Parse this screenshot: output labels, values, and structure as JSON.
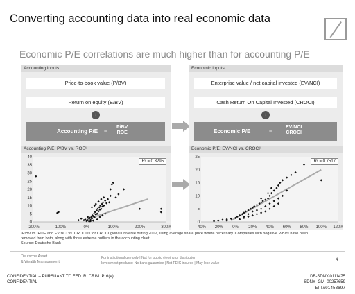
{
  "header": {
    "title": "Converting accounting data into real economic data",
    "subtitle": "Economic P/E correlations are much higher than for accounting P/E"
  },
  "left_panel": {
    "header": "Accounting inputs",
    "box1": "Price-to-book value (P/BV)",
    "box2": "Return on equity (E/BV)",
    "pe_label": "Accounting P/E",
    "equals": "=",
    "numerator": "P/BV",
    "denominator": "ROE"
  },
  "right_panel": {
    "header": "Economic inputs",
    "box1": "Enterprise value / net capital invested (EV/NCI)",
    "box2": "Cash Return On Capital Invested (CROCI)",
    "pe_label": "Economic P/E",
    "equals": "=",
    "numerator": "EV/NCI",
    "denominator": "CROCI"
  },
  "icons": {
    "down_arrow": "↓"
  },
  "chart_data": [
    {
      "type": "scatter",
      "title": "Accounting P/E: P/BV vs. ROE¹",
      "r2": "R² = 0.3295",
      "xlim": [
        -2.0,
        3.0
      ],
      "ylim": [
        0,
        40
      ],
      "xticks": [
        "-200%",
        "-100%",
        "0%",
        "100%",
        "200%",
        "300%"
      ],
      "yticks": [
        "0",
        "5",
        "10",
        "15",
        "20",
        "25",
        "30",
        "35",
        "40"
      ],
      "trendline": [
        [
          0.0,
          1.5
        ],
        [
          2.3,
          14
        ]
      ],
      "points": [
        [
          -1.05,
          6
        ],
        [
          -1.1,
          5.5
        ],
        [
          -0.1,
          1
        ],
        [
          -0.05,
          1.5
        ],
        [
          0.0,
          0.5
        ],
        [
          0.05,
          1
        ],
        [
          0.1,
          2
        ],
        [
          0.12,
          2.5
        ],
        [
          0.15,
          1.2
        ],
        [
          0.18,
          3
        ],
        [
          0.2,
          2
        ],
        [
          0.22,
          4
        ],
        [
          0.25,
          3.5
        ],
        [
          0.28,
          5
        ],
        [
          0.3,
          2.8
        ],
        [
          0.32,
          6
        ],
        [
          0.35,
          4.5
        ],
        [
          0.38,
          7
        ],
        [
          0.4,
          5
        ],
        [
          0.42,
          8
        ],
        [
          0.45,
          6.5
        ],
        [
          0.48,
          9
        ],
        [
          0.5,
          7.5
        ],
        [
          0.52,
          10
        ],
        [
          0.55,
          8
        ],
        [
          0.58,
          11
        ],
        [
          0.6,
          9.5
        ],
        [
          0.62,
          12
        ],
        [
          0.65,
          10
        ],
        [
          0.7,
          13
        ],
        [
          0.75,
          11.5
        ],
        [
          0.8,
          14
        ],
        [
          0.85,
          12
        ],
        [
          0.9,
          20
        ],
        [
          0.95,
          23
        ],
        [
          1.0,
          24
        ],
        [
          0.3,
          10
        ],
        [
          0.2,
          9
        ],
        [
          0.35,
          11
        ],
        [
          0.45,
          12.5
        ],
        [
          0.5,
          3
        ],
        [
          0.6,
          4
        ],
        [
          0.7,
          5
        ],
        [
          0.4,
          1.5
        ],
        [
          0.25,
          0.8
        ],
        [
          0.15,
          0.5
        ],
        [
          0.1,
          0.2
        ],
        [
          0.05,
          3
        ],
        [
          -0.2,
          2
        ],
        [
          -0.3,
          1
        ],
        [
          -1.9,
          28
        ],
        [
          1.4,
          20
        ],
        [
          2.0,
          8
        ],
        [
          2.8,
          8
        ],
        [
          2.8,
          6
        ],
        [
          1.1,
          15
        ],
        [
          1.2,
          17
        ],
        [
          0.9,
          16
        ],
        [
          0.55,
          14
        ],
        [
          0.65,
          15
        ]
      ]
    },
    {
      "type": "scatter",
      "title": "Economic P/E: EV/NCI vs. CROCI¹",
      "r2": "R² = 0.7517",
      "xlim": [
        -0.4,
        1.2
      ],
      "ylim": [
        0,
        25
      ],
      "xticks": [
        "-40%",
        "-20%",
        "0%",
        "20%",
        "40%",
        "60%",
        "80%",
        "100%",
        "120%"
      ],
      "yticks": [
        "0",
        "5",
        "10",
        "15",
        "20",
        "25"
      ],
      "trendline": [
        [
          -0.05,
          0.5
        ],
        [
          1.0,
          20
        ]
      ],
      "points": [
        [
          -0.2,
          0.5
        ],
        [
          -0.15,
          0.8
        ],
        [
          -0.1,
          1
        ],
        [
          -0.05,
          1.2
        ],
        [
          0.0,
          1.5
        ],
        [
          0.02,
          2
        ],
        [
          0.05,
          2.5
        ],
        [
          0.08,
          3
        ],
        [
          0.1,
          3.5
        ],
        [
          0.12,
          4
        ],
        [
          0.15,
          4.5
        ],
        [
          0.18,
          5
        ],
        [
          0.2,
          5.5
        ],
        [
          0.22,
          6
        ],
        [
          0.25,
          6.5
        ],
        [
          0.28,
          7
        ],
        [
          0.3,
          7.5
        ],
        [
          0.32,
          8
        ],
        [
          0.35,
          8.5
        ],
        [
          0.38,
          9
        ],
        [
          0.4,
          10
        ],
        [
          0.42,
          11
        ],
        [
          0.45,
          12
        ],
        [
          0.48,
          13
        ],
        [
          0.5,
          14
        ],
        [
          0.52,
          15
        ],
        [
          0.55,
          16
        ],
        [
          0.6,
          17
        ],
        [
          0.65,
          18
        ],
        [
          0.7,
          19
        ],
        [
          0.1,
          2
        ],
        [
          0.15,
          3
        ],
        [
          0.2,
          4
        ],
        [
          0.25,
          4.5
        ],
        [
          0.3,
          5
        ],
        [
          0.35,
          6
        ],
        [
          0.4,
          7
        ],
        [
          0.45,
          8
        ],
        [
          0.5,
          9
        ],
        [
          0.55,
          10
        ],
        [
          0.05,
          1
        ],
        [
          0.1,
          1.5
        ],
        [
          0.15,
          2
        ],
        [
          0.2,
          2.5
        ],
        [
          0.25,
          3
        ],
        [
          0.3,
          3.5
        ],
        [
          0.35,
          4
        ],
        [
          0.4,
          5
        ],
        [
          0.45,
          6
        ],
        [
          0.5,
          7
        ],
        [
          1.0,
          16
        ],
        [
          0.8,
          22
        ],
        [
          0.6,
          12
        ],
        [
          0.38,
          11
        ],
        [
          0.42,
          13
        ],
        [
          0.3,
          9
        ],
        [
          -0.1,
          0.5
        ],
        [
          -0.25,
          0.3
        ]
      ]
    }
  ],
  "footnote": {
    "line1": "¹P/BV vs. ROE and EV/NCI vs. CROCI is for CROCI global universe during 2012, using average share price where necessary. Companies with negative P/BVs have been",
    "line2": "removed from both, along with three extreme outliers in the accounting chart.",
    "source": "Source: Deutsche Bank"
  },
  "footer": {
    "company1": "Deutsche Asset",
    "company2": "& Wealth Management",
    "disclaimer1": "For institutional use only  |  Not for public viewing or distribution",
    "disclaimer2": "Investment products: No bank guarantee  |  Not FDIC insured  |  May lose value",
    "page": "4"
  },
  "stamps": {
    "conf1": "CONFIDENTIAL – PURSUANT TO FED. R. CRIM. P. 6(e)",
    "conf2": "CONFIDENTIAL",
    "id1": "DB-SDNY-0111475",
    "id2": "SDNY_GM_00257659",
    "id3": "EFTA01453697"
  }
}
